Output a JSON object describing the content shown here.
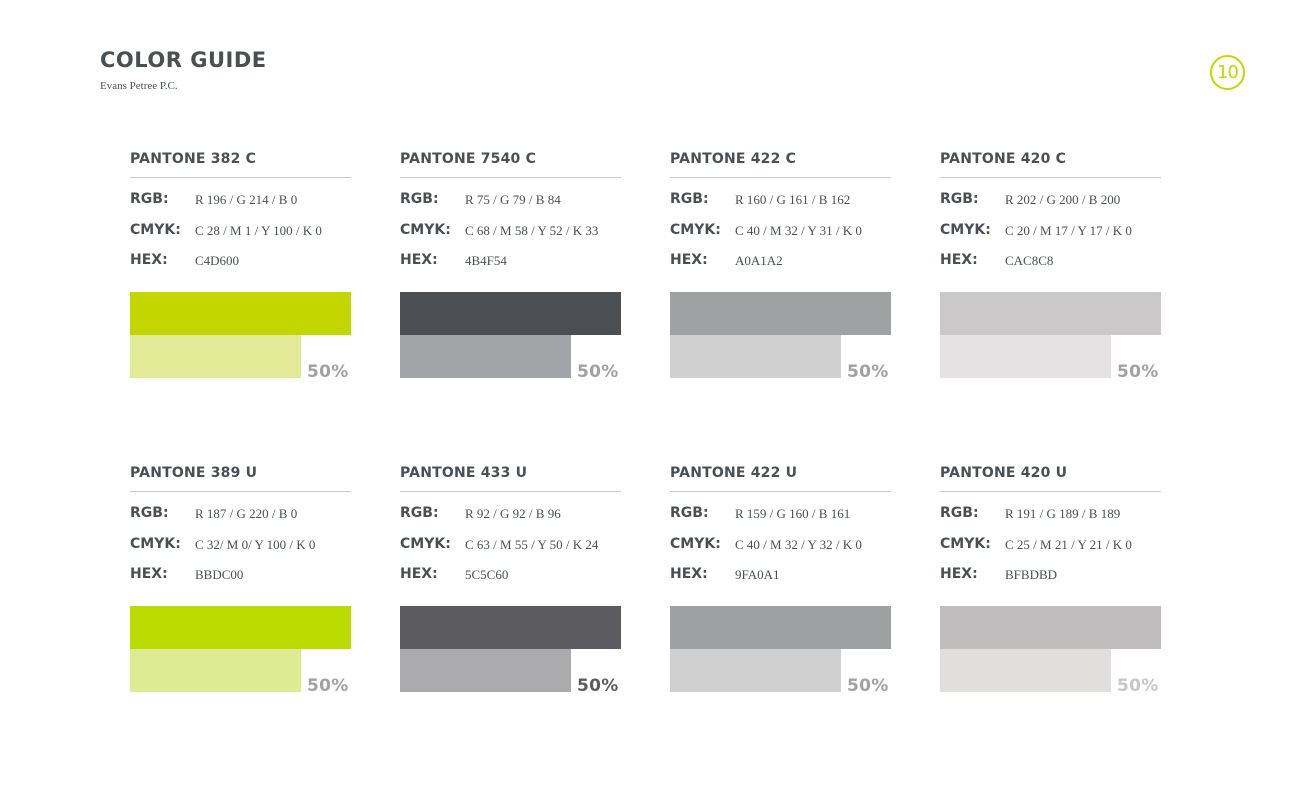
{
  "header": {
    "title": "COLOR GUIDE",
    "subtitle": "Evans Petree P.C.",
    "page_number": "10"
  },
  "labels": {
    "rgb": "RGB:",
    "cmyk": "CMYK:",
    "hex": "HEX:"
  },
  "swatches": [
    {
      "name": "PANTONE 382 C",
      "rgb": "R 196 / G 214 / B 0",
      "cmyk": "C 28 / M 1 / Y 100 / K 0",
      "hex": "C4D600",
      "color": "#C4D600",
      "tint_color": "#E2EA98",
      "tint": "50%",
      "tint_label_color": "#a1a1a2"
    },
    {
      "name": "PANTONE 7540 C",
      "rgb": "R 75 / G 79 / B 84",
      "cmyk": "C 68 / M 58 / Y 52 / K 33",
      "hex": "4B4F54",
      "color": "#4B4F54",
      "tint_color": "#A3A4A7",
      "tint": "50%",
      "tint_label_color": "#a1a1a2"
    },
    {
      "name": "PANTONE 422 C",
      "rgb": "R 160 / G 161 / B 162",
      "cmyk": "C 40 / M 32 / Y 31 / K 0",
      "hex": "A0A1A2",
      "color": "#A0A1A2",
      "tint_color": "#D0D0D0",
      "tint": "50%",
      "tint_label_color": "#a1a1a2"
    },
    {
      "name": "PANTONE 420 C",
      "rgb": "R 202 / G 200 / B 200",
      "cmyk": "C 20 / M 17 / Y 17 / K 0",
      "hex": "CAC8C8",
      "color": "#CAC8C8",
      "tint_color": "#E4E2E2",
      "tint": "50%",
      "tint_label_color": "#a1a1a2"
    },
    {
      "name": "PANTONE 389 U",
      "rgb": "R 187 / G 220 / B 0",
      "cmyk": "C 32/ M 0/ Y 100 / K 0",
      "hex": "BBDC00",
      "color": "#BBDC00",
      "tint_color": "#DDEC92",
      "tint": "50%",
      "tint_label_color": "#a1a1a2"
    },
    {
      "name": "PANTONE 433 U",
      "rgb": "R 92 / G 92 / B 96",
      "cmyk": "C 63 / M 55 / Y 50 / K 24",
      "hex": "5C5C60",
      "color": "#5C5C60",
      "tint_color": "#ABAAAC",
      "tint": "50%",
      "tint_label_color": "#5c5c60"
    },
    {
      "name": "PANTONE 422 U",
      "rgb": "R 159 / G 160 / B 161",
      "cmyk": "C 40 / M 32 / Y 32 / K 0",
      "hex": "9FA0A1",
      "color": "#9FA0A1",
      "tint_color": "#CFCFCF",
      "tint": "50%",
      "tint_label_color": "#a1a1a2"
    },
    {
      "name": "PANTONE 420 U",
      "rgb": "R 191 / G 189 / B 189",
      "cmyk": "C 25 / M 21 / Y 21 / K 0",
      "hex": "BFBDBD",
      "color": "#BFBDBD",
      "tint_color": "#E1DEDE",
      "tint": "50%",
      "tint_label_color": "#c8c6c6"
    }
  ]
}
